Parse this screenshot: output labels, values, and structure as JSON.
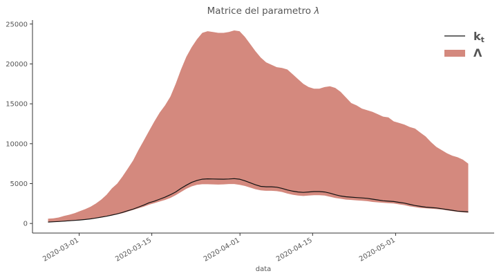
{
  "chart_data": {
    "type": "area",
    "title": "Matrice del parametro λ",
    "xlabel": "data",
    "ylabel": "",
    "x_range": [
      "2020-02-21",
      "2020-05-20"
    ],
    "ylim": [
      -1200,
      25500
    ],
    "y_ticks": [
      0,
      5000,
      10000,
      15000,
      20000,
      25000
    ],
    "x_ticks": [
      "2020-03-01",
      "2020-03-15",
      "2020-04-01",
      "2020-04-15",
      "2020-05-01"
    ],
    "grid": false,
    "legend_position": "top-right",
    "x": [
      "2020-02-24",
      "2020-02-25",
      "2020-02-26",
      "2020-02-27",
      "2020-02-28",
      "2020-02-29",
      "2020-03-01",
      "2020-03-02",
      "2020-03-03",
      "2020-03-04",
      "2020-03-05",
      "2020-03-06",
      "2020-03-07",
      "2020-03-08",
      "2020-03-09",
      "2020-03-10",
      "2020-03-11",
      "2020-03-12",
      "2020-03-13",
      "2020-03-14",
      "2020-03-15",
      "2020-03-16",
      "2020-03-17",
      "2020-03-18",
      "2020-03-19",
      "2020-03-20",
      "2020-03-21",
      "2020-03-22",
      "2020-03-23",
      "2020-03-24",
      "2020-03-25",
      "2020-03-26",
      "2020-03-27",
      "2020-03-28",
      "2020-03-29",
      "2020-03-30",
      "2020-03-31",
      "2020-04-01",
      "2020-04-02",
      "2020-04-03",
      "2020-04-04",
      "2020-04-05",
      "2020-04-06",
      "2020-04-07",
      "2020-04-08",
      "2020-04-09",
      "2020-04-10",
      "2020-04-11",
      "2020-04-12",
      "2020-04-13",
      "2020-04-14",
      "2020-04-15",
      "2020-04-16",
      "2020-04-17",
      "2020-04-18",
      "2020-04-19",
      "2020-04-20",
      "2020-04-21",
      "2020-04-22",
      "2020-04-23",
      "2020-04-24",
      "2020-04-25",
      "2020-04-26",
      "2020-04-27",
      "2020-04-28",
      "2020-04-29",
      "2020-04-30",
      "2020-05-01",
      "2020-05-02",
      "2020-05-03",
      "2020-05-04",
      "2020-05-05",
      "2020-05-06",
      "2020-05-07",
      "2020-05-08",
      "2020-05-09",
      "2020-05-10",
      "2020-05-11",
      "2020-05-12",
      "2020-05-13"
    ],
    "series": [
      {
        "name": "Λ",
        "kind": "band",
        "color": "#d4897e",
        "upper": [
          600,
          650,
          750,
          950,
          1100,
          1300,
          1550,
          1800,
          2100,
          2500,
          3000,
          3600,
          4400,
          5000,
          5900,
          6900,
          7900,
          9200,
          10400,
          11600,
          12800,
          13900,
          14800,
          15900,
          17500,
          19300,
          20900,
          22100,
          23100,
          23900,
          24100,
          24000,
          23900,
          23900,
          24000,
          24200,
          24100,
          23400,
          22500,
          21600,
          20800,
          20200,
          19900,
          19600,
          19500,
          19300,
          18700,
          18100,
          17500,
          17100,
          16900,
          16900,
          17100,
          17200,
          17000,
          16500,
          15800,
          15100,
          14800,
          14400,
          14200,
          14000,
          13700,
          13400,
          13300,
          12800,
          12600,
          12400,
          12100,
          11900,
          11400,
          10900,
          10200,
          9600,
          9200,
          8800,
          8500,
          8300,
          8000,
          7500
        ],
        "lower": [
          150,
          180,
          220,
          250,
          300,
          350,
          400,
          470,
          550,
          650,
          760,
          880,
          1000,
          1150,
          1300,
          1500,
          1700,
          1900,
          2100,
          2350,
          2550,
          2750,
          2950,
          3200,
          3550,
          3950,
          4350,
          4650,
          4850,
          4920,
          4920,
          4900,
          4880,
          4900,
          4950,
          4950,
          4850,
          4700,
          4500,
          4300,
          4150,
          4100,
          4100,
          4050,
          3950,
          3750,
          3600,
          3500,
          3450,
          3500,
          3550,
          3550,
          3500,
          3350,
          3200,
          3100,
          3000,
          2950,
          2900,
          2850,
          2800,
          2700,
          2650,
          2600,
          2550,
          2500,
          2400,
          2300,
          2150,
          2050,
          1950,
          1900,
          1850,
          1800,
          1750,
          1650,
          1550,
          1450,
          1400,
          1350
        ],
        "end_offset_days": 2
      },
      {
        "name": "kt",
        "kind": "line",
        "color": "#111111",
        "values": [
          180,
          210,
          250,
          290,
          340,
          390,
          440,
          500,
          580,
          680,
          790,
          910,
          1050,
          1200,
          1380,
          1600,
          1800,
          2050,
          2300,
          2600,
          2800,
          3050,
          3300,
          3600,
          3950,
          4400,
          4800,
          5150,
          5400,
          5550,
          5600,
          5580,
          5560,
          5550,
          5580,
          5620,
          5550,
          5350,
          5100,
          4850,
          4650,
          4600,
          4600,
          4550,
          4400,
          4200,
          4050,
          3950,
          3900,
          3950,
          4000,
          4000,
          3950,
          3800,
          3600,
          3450,
          3350,
          3300,
          3250,
          3200,
          3150,
          3050,
          2950,
          2850,
          2800,
          2750,
          2650,
          2550,
          2400,
          2250,
          2150,
          2050,
          2000,
          1950,
          1850,
          1750,
          1650,
          1550,
          1500,
          1450
        ],
        "end_offset_days": 2
      }
    ],
    "legend": [
      "k_t",
      "Λ"
    ]
  }
}
